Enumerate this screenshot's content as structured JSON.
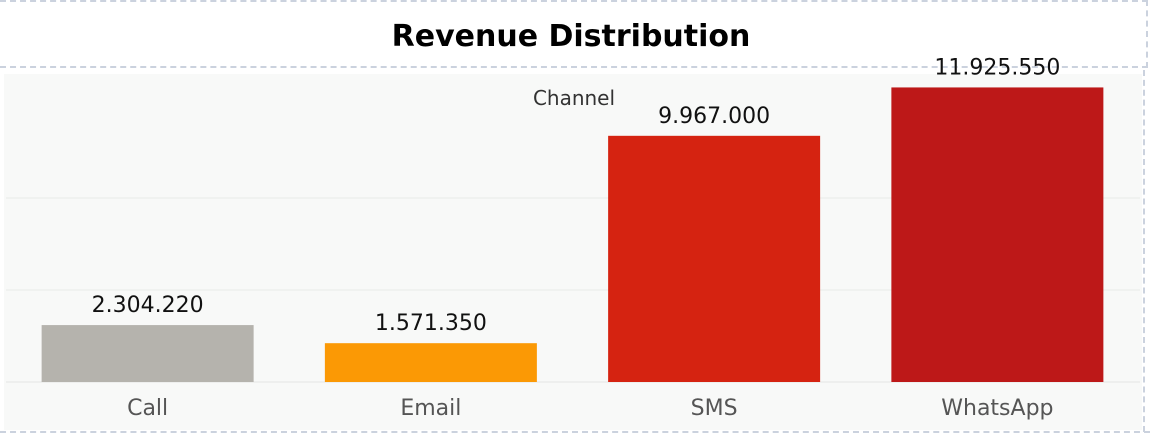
{
  "title": "Revenue Distribution",
  "chart_data": {
    "type": "bar",
    "header": "Channel",
    "categories": [
      "Call",
      "Email",
      "SMS",
      "WhatsApp"
    ],
    "values": [
      2304220,
      1571350,
      9967000,
      11925550
    ],
    "value_labels": [
      "2.304.220",
      "1.571.350",
      "9.967.000",
      "11.925.550"
    ],
    "colors": [
      "#b5b3ad",
      "#fb9905",
      "#d52311",
      "#bd1818"
    ],
    "ylim": [
      0,
      12500000
    ],
    "gridlines": [
      5000000,
      10000000
    ],
    "grid": true
  }
}
